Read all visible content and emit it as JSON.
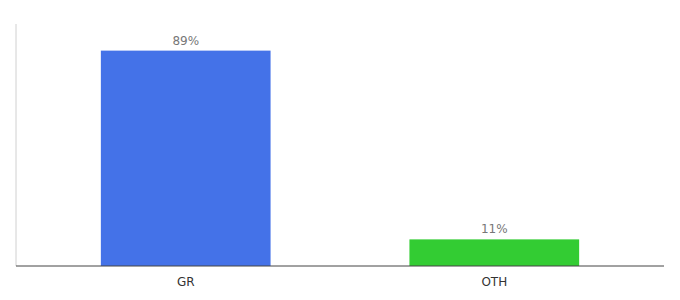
{
  "chart_data": {
    "type": "bar",
    "categories": [
      "GR",
      "OTH"
    ],
    "values": [
      89,
      11
    ],
    "colors": [
      "#4472e8",
      "#33cc33"
    ],
    "ylim": [
      0,
      100
    ],
    "tick_labels": "x",
    "data_labels": true,
    "value_labels": [
      "89%",
      "11%"
    ],
    "grid": false
  }
}
